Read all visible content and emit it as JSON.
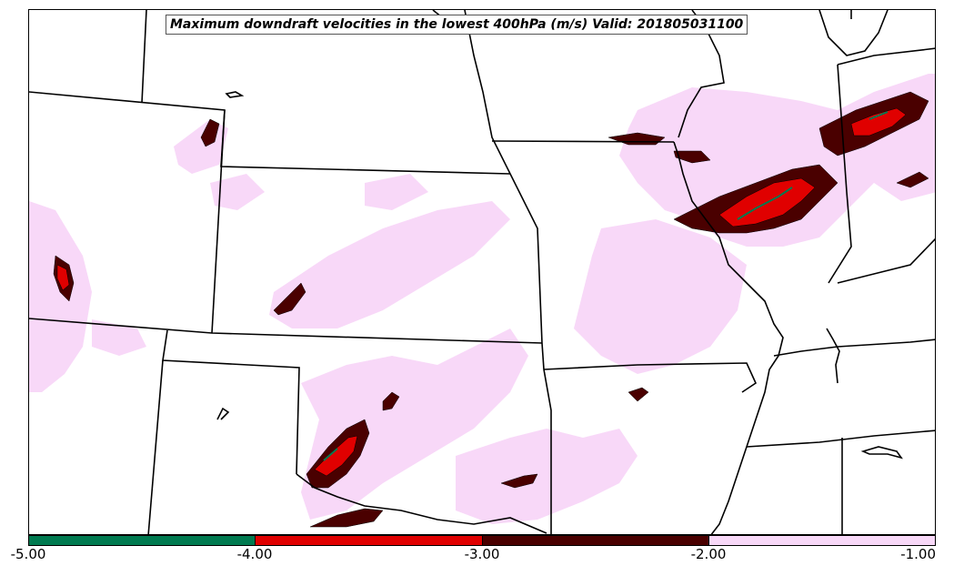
{
  "title": "Maximum downdraft velocities in the lowest 400hPa (m/s) Valid: 201805031100",
  "colorbar": {
    "segments": [
      {
        "range": [
          -5.0,
          -4.0
        ],
        "color": "#007a50"
      },
      {
        "range": [
          -4.0,
          -3.0
        ],
        "color": "#e00000"
      },
      {
        "range": [
          -3.0,
          -2.0
        ],
        "color": "#4a0000"
      },
      {
        "range": [
          -2.0,
          -1.0
        ],
        "color": "#f8d8f8"
      }
    ],
    "tick_labels": [
      "-5.00",
      "-4.00",
      "-3.00",
      "-2.00",
      "-1.00"
    ]
  },
  "colors": {
    "pink": "#f8d8f8",
    "dark_red": "#4a0000",
    "red": "#e00000",
    "green": "#007a50"
  }
}
